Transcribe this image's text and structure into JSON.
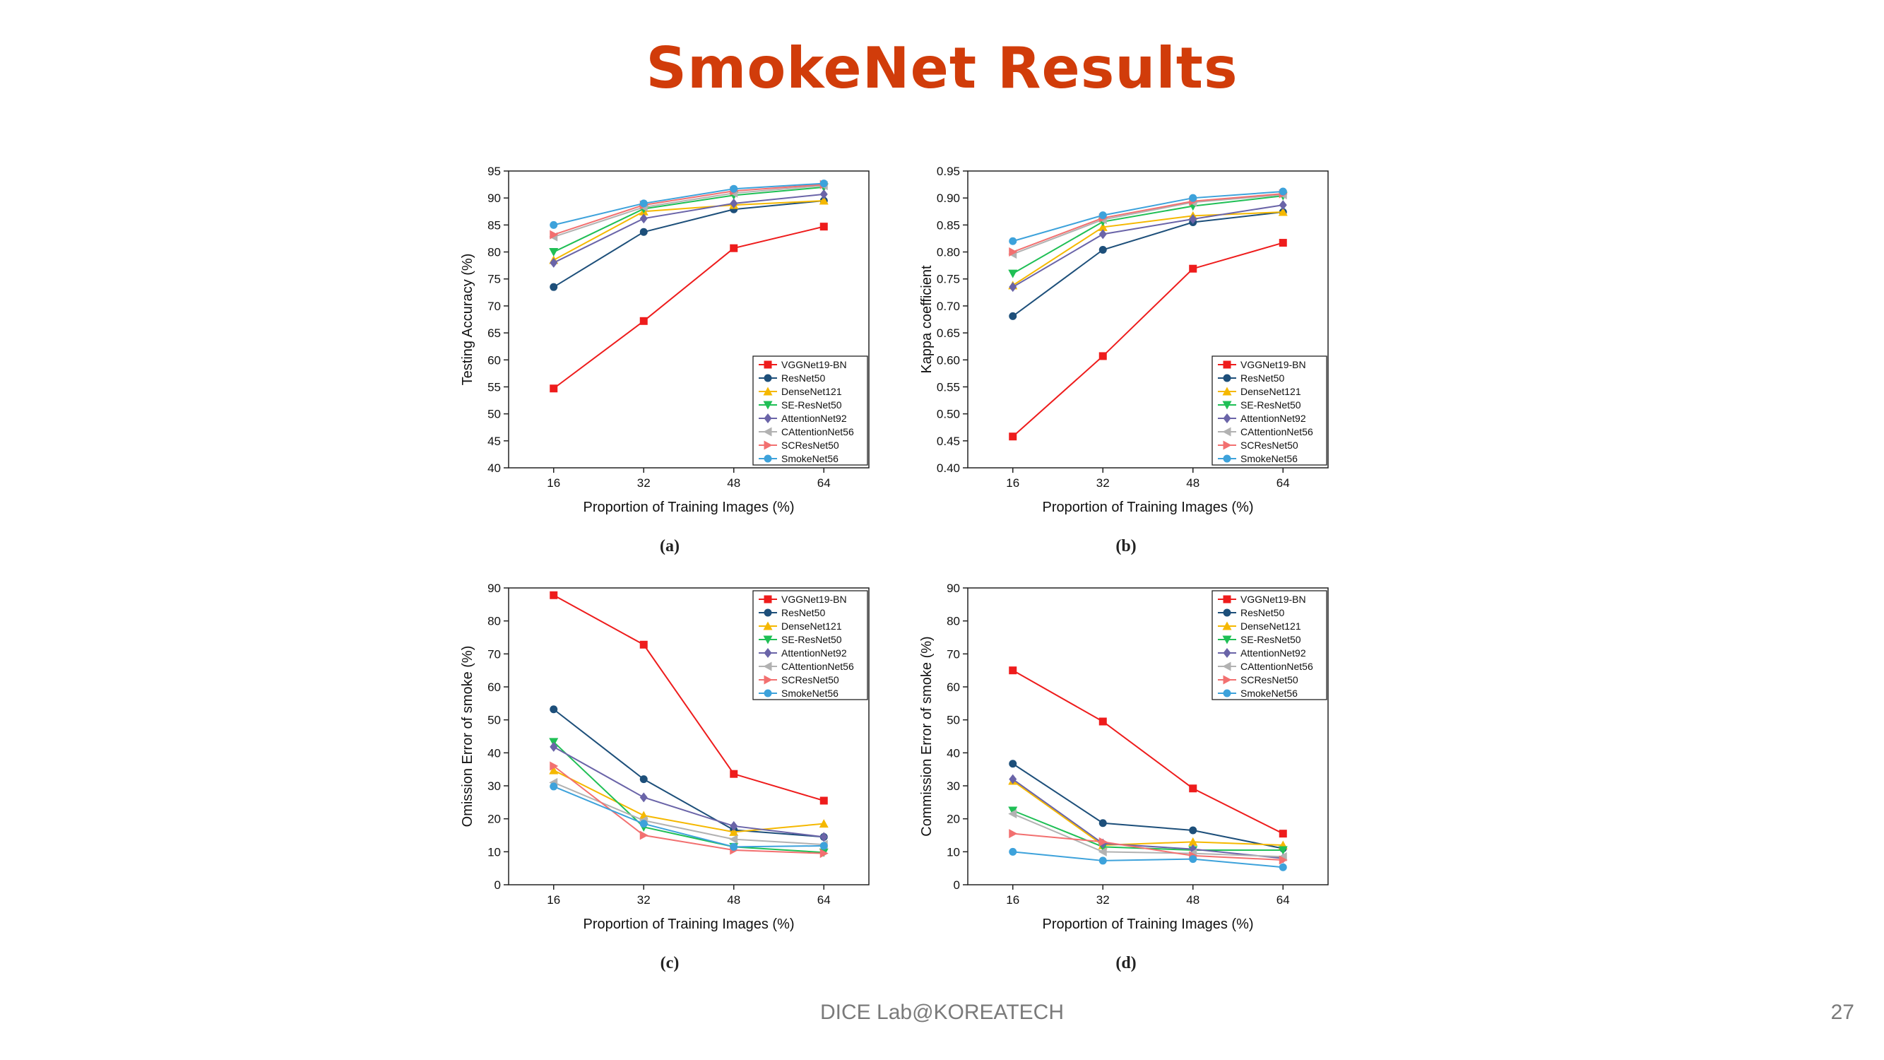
{
  "slide": {
    "title": "SmokeNet Results",
    "footer": "DICE Lab@KOREATECH",
    "page_number": "27"
  },
  "series_styles": [
    {
      "name": "VGGNet19-BN",
      "color": "#ee1c1c",
      "marker": "square"
    },
    {
      "name": "ResNet50",
      "color": "#1d4f7a",
      "marker": "circle"
    },
    {
      "name": "DenseNet121",
      "color": "#f5b800",
      "marker": "triangle-up"
    },
    {
      "name": "SE-ResNet50",
      "color": "#1fbf55",
      "marker": "triangle-down"
    },
    {
      "name": "AttentionNet92",
      "color": "#6a64a8",
      "marker": "diamond"
    },
    {
      "name": "CAttentionNet56",
      "color": "#b2b2b2",
      "marker": "triangle-left"
    },
    {
      "name": "SCResNet50",
      "color": "#f27070",
      "marker": "triangle-right"
    },
    {
      "name": "SmokeNet56",
      "color": "#3da2db",
      "marker": "circle"
    }
  ],
  "chart_data": [
    {
      "type": "line",
      "panel_label": "(a)",
      "xlabel": "Proportion of Training Images (%)",
      "ylabel": "Testing Accuracy (%)",
      "x": [
        16,
        32,
        48,
        64
      ],
      "xticks": [
        "16",
        "32",
        "48",
        "64"
      ],
      "ylim": [
        40,
        95
      ],
      "yticks": [
        "40",
        "45",
        "50",
        "55",
        "60",
        "65",
        "70",
        "75",
        "80",
        "85",
        "90",
        "95"
      ],
      "legend_position": "bottom-right",
      "series": [
        {
          "name": "VGGNet19-BN",
          "values": [
            54.7,
            67.2,
            80.7,
            84.7
          ]
        },
        {
          "name": "ResNet50",
          "values": [
            73.5,
            83.7,
            87.9,
            89.5
          ]
        },
        {
          "name": "DenseNet121",
          "values": [
            78.5,
            87.5,
            88.7,
            89.5
          ]
        },
        {
          "name": "SE-ResNet50",
          "values": [
            80.0,
            88.0,
            90.5,
            92.0
          ]
        },
        {
          "name": "AttentionNet92",
          "values": [
            78.0,
            86.2,
            89.0,
            90.7
          ]
        },
        {
          "name": "CAttentionNet56",
          "values": [
            82.8,
            88.3,
            90.9,
            92.3
          ]
        },
        {
          "name": "SCResNet50",
          "values": [
            83.2,
            88.7,
            91.3,
            92.5
          ]
        },
        {
          "name": "SmokeNet56",
          "values": [
            85.0,
            89.0,
            91.7,
            92.7
          ]
        }
      ]
    },
    {
      "type": "line",
      "panel_label": "(b)",
      "xlabel": "Proportion of Training Images (%)",
      "ylabel": "Kappa coefficient",
      "x": [
        16,
        32,
        48,
        64
      ],
      "xticks": [
        "16",
        "32",
        "48",
        "64"
      ],
      "ylim": [
        0.4,
        0.95
      ],
      "yticks": [
        "0.40",
        "0.45",
        "0.50",
        "0.55",
        "0.60",
        "0.65",
        "0.70",
        "0.75",
        "0.80",
        "0.85",
        "0.90",
        "0.95"
      ],
      "legend_position": "bottom-right",
      "series": [
        {
          "name": "VGGNet19-BN",
          "values": [
            0.458,
            0.607,
            0.769,
            0.817
          ]
        },
        {
          "name": "ResNet50",
          "values": [
            0.681,
            0.804,
            0.855,
            0.874
          ]
        },
        {
          "name": "DenseNet121",
          "values": [
            0.738,
            0.846,
            0.867,
            0.874
          ]
        },
        {
          "name": "SE-ResNet50",
          "values": [
            0.76,
            0.856,
            0.885,
            0.904
          ]
        },
        {
          "name": "AttentionNet92",
          "values": [
            0.735,
            0.833,
            0.861,
            0.887
          ]
        },
        {
          "name": "CAttentionNet56",
          "values": [
            0.796,
            0.86,
            0.892,
            0.906
          ]
        },
        {
          "name": "SCResNet50",
          "values": [
            0.8,
            0.863,
            0.894,
            0.908
          ]
        },
        {
          "name": "SmokeNet56",
          "values": [
            0.82,
            0.868,
            0.9,
            0.912
          ]
        }
      ]
    },
    {
      "type": "line",
      "panel_label": "(c)",
      "xlabel": "Proportion of Training Images (%)",
      "ylabel": "Omission Error of smoke (%)",
      "x": [
        16,
        32,
        48,
        64
      ],
      "xticks": [
        "16",
        "32",
        "48",
        "64"
      ],
      "ylim": [
        0,
        90
      ],
      "yticks": [
        "0",
        "10",
        "20",
        "30",
        "40",
        "50",
        "60",
        "70",
        "80",
        "90"
      ],
      "legend_position": "top-right",
      "series": [
        {
          "name": "VGGNet19-BN",
          "values": [
            87.8,
            72.8,
            33.6,
            25.5
          ]
        },
        {
          "name": "ResNet50",
          "values": [
            53.2,
            32.0,
            16.6,
            14.5
          ]
        },
        {
          "name": "DenseNet121",
          "values": [
            34.7,
            21.0,
            16.0,
            18.5
          ]
        },
        {
          "name": "SE-ResNet50",
          "values": [
            43.3,
            17.5,
            11.5,
            9.8
          ]
        },
        {
          "name": "AttentionNet92",
          "values": [
            41.8,
            26.5,
            17.8,
            14.5
          ]
        },
        {
          "name": "CAttentionNet56",
          "values": [
            31.0,
            19.5,
            13.8,
            12.2
          ]
        },
        {
          "name": "SCResNet50",
          "values": [
            36.0,
            15.0,
            10.5,
            9.5
          ]
        },
        {
          "name": "SmokeNet56",
          "values": [
            29.8,
            18.5,
            11.5,
            11.8
          ]
        }
      ]
    },
    {
      "type": "line",
      "panel_label": "(d)",
      "xlabel": "Proportion of Training Images (%)",
      "ylabel": "Commission Error of smoke (%)",
      "x": [
        16,
        32,
        48,
        64
      ],
      "xticks": [
        "16",
        "32",
        "48",
        "64"
      ],
      "ylim": [
        0,
        90
      ],
      "yticks": [
        "0",
        "10",
        "20",
        "30",
        "40",
        "50",
        "60",
        "70",
        "80",
        "90"
      ],
      "legend_position": "top-right",
      "series": [
        {
          "name": "VGGNet19-BN",
          "values": [
            65.0,
            49.5,
            29.2,
            15.5
          ]
        },
        {
          "name": "ResNet50",
          "values": [
            36.7,
            18.7,
            16.5,
            11.0
          ]
        },
        {
          "name": "DenseNet121",
          "values": [
            31.5,
            12.0,
            13.0,
            12.0
          ]
        },
        {
          "name": "SE-ResNet50",
          "values": [
            22.5,
            11.5,
            10.5,
            10.5
          ]
        },
        {
          "name": "AttentionNet92",
          "values": [
            32.0,
            12.5,
            10.8,
            8.0
          ]
        },
        {
          "name": "CAttentionNet56",
          "values": [
            21.5,
            10.0,
            9.5,
            8.5
          ]
        },
        {
          "name": "SCResNet50",
          "values": [
            15.5,
            13.0,
            8.8,
            7.5
          ]
        },
        {
          "name": "SmokeNet56",
          "values": [
            10.0,
            7.3,
            7.8,
            5.3
          ]
        }
      ]
    }
  ]
}
